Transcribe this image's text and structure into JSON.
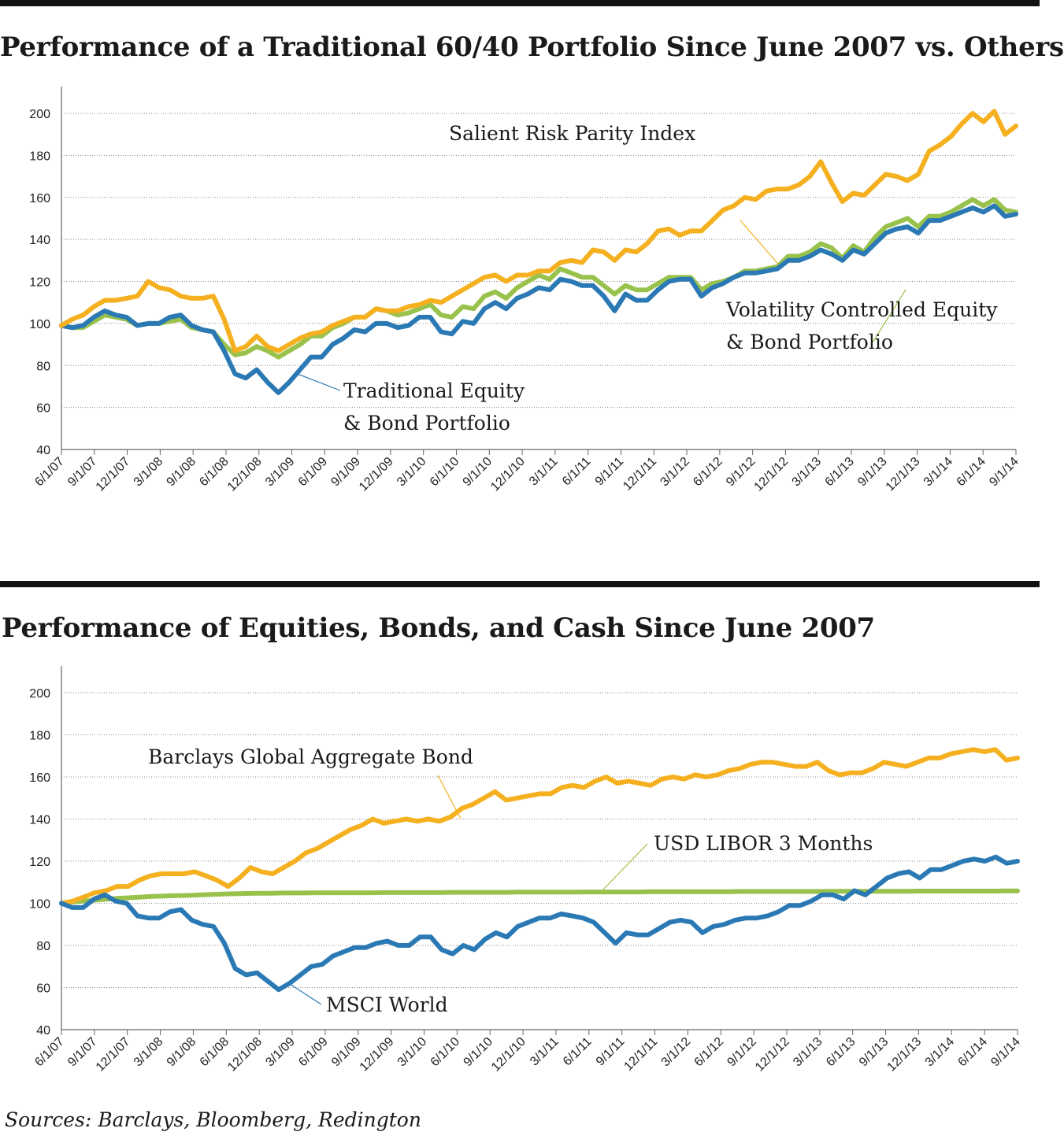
{
  "source_note": "Sources: Barclays, Bloomberg, Redington",
  "chart_data": [
    {
      "type": "line",
      "title": "Performance of a Traditional 60/40 Portfolio Since June 2007 vs. Others",
      "xlabel": "",
      "ylabel": "",
      "ylim": [
        40,
        210
      ],
      "yticks": [
        40,
        60,
        80,
        100,
        120,
        140,
        160,
        180,
        200
      ],
      "grid": true,
      "x_tick_labels": [
        "6/1/07",
        "9/1/07",
        "12/1/07",
        "3/1/08",
        "9/1/08",
        "6/1/08",
        "12/1/08",
        "3/1/09",
        "6/1/09",
        "9/1/09",
        "12/1/09",
        "3/1/10",
        "6/1/10",
        "9/1/10",
        "12/1/10",
        "3/1/11",
        "6/1/11",
        "9/1/11",
        "12/1/11",
        "3/1/12",
        "6/1/12",
        "9/1/12",
        "12/1/12",
        "3/1/13",
        "6/1/13",
        "9/1/13",
        "12/1/13",
        "3/1/14",
        "6/1/14",
        "9/1/14"
      ],
      "series": [
        {
          "name": "Traditional Equity & Bond Portfolio",
          "color": "#2b79b4",
          "values": [
            99,
            98,
            99,
            103,
            106,
            104,
            103,
            99,
            100,
            100,
            103,
            104,
            99,
            97,
            96,
            87,
            76,
            74,
            78,
            72,
            67,
            72,
            78,
            84,
            84,
            90,
            93,
            97,
            96,
            100,
            100,
            98,
            99,
            103,
            103,
            96,
            95,
            101,
            100,
            107,
            110,
            107,
            112,
            114,
            117,
            116,
            121,
            120,
            118,
            118,
            113,
            106,
            114,
            111,
            111,
            116,
            120,
            121,
            121,
            113,
            117,
            119,
            122,
            124,
            124,
            125,
            126,
            130,
            130,
            132,
            135,
            133,
            130,
            135,
            133,
            138,
            143,
            145,
            146,
            143,
            149,
            149,
            151,
            153,
            155,
            153,
            156,
            151,
            152
          ]
        },
        {
          "name": "Volatility Controlled Equity & Bond Portfolio",
          "color": "#99c24d",
          "values": [
            99,
            98,
            98,
            101,
            104,
            103,
            102,
            99,
            100,
            100,
            101,
            102,
            98,
            97,
            96,
            90,
            85,
            86,
            89,
            87,
            84,
            87,
            90,
            94,
            94,
            98,
            100,
            103,
            103,
            107,
            106,
            104,
            105,
            107,
            109,
            104,
            103,
            108,
            107,
            113,
            115,
            112,
            117,
            120,
            123,
            121,
            126,
            124,
            122,
            122,
            118,
            114,
            118,
            116,
            116,
            119,
            122,
            122,
            122,
            116,
            119,
            120,
            122,
            125,
            125,
            126,
            127,
            132,
            132,
            134,
            138,
            136,
            131,
            137,
            134,
            141,
            146,
            148,
            150,
            146,
            151,
            151,
            153,
            156,
            159,
            156,
            159,
            154,
            153
          ]
        },
        {
          "name": "Salient Risk Parity Index",
          "color": "#f5b01f",
          "values": [
            99,
            102,
            104,
            108,
            111,
            111,
            112,
            113,
            120,
            117,
            116,
            113,
            112,
            112,
            113,
            102,
            87,
            89,
            94,
            89,
            87,
            90,
            93,
            95,
            96,
            99,
            101,
            103,
            103,
            107,
            106,
            106,
            108,
            109,
            111,
            110,
            113,
            116,
            119,
            122,
            123,
            120,
            123,
            123,
            125,
            125,
            129,
            130,
            129,
            135,
            134,
            130,
            135,
            134,
            138,
            144,
            145,
            142,
            144,
            144,
            149,
            154,
            156,
            160,
            159,
            163,
            164,
            164,
            166,
            170,
            177,
            167,
            158,
            162,
            161,
            166,
            171,
            170,
            168,
            171,
            182,
            185,
            189,
            195,
            200,
            196,
            201,
            190,
            194
          ]
        }
      ],
      "annotations": [
        {
          "lines": [
            "Salient Risk Parity Index"
          ]
        },
        {
          "lines": [
            "Traditional Equity",
            "& Bond Portfolio"
          ]
        },
        {
          "lines": [
            "Volatility Controlled Equity",
            "& Bond Portfolio"
          ]
        }
      ]
    },
    {
      "type": "line",
      "title": "Performance of Equities, Bonds, and Cash Since June 2007",
      "xlabel": "",
      "ylabel": "",
      "ylim": [
        40,
        210
      ],
      "yticks": [
        40,
        60,
        80,
        100,
        120,
        140,
        160,
        180,
        200
      ],
      "grid": true,
      "x_tick_labels": [
        "6/1/07",
        "9/1/07",
        "12/1/07",
        "3/1/08",
        "9/1/08",
        "6/1/08",
        "12/1/08",
        "3/1/09",
        "6/1/09",
        "9/1/09",
        "12/1/09",
        "3/1/10",
        "6/1/10",
        "9/1/10",
        "12/1/10",
        "3/1/11",
        "6/1/11",
        "9/1/11",
        "12/1/11",
        "3/1/12",
        "6/1/12",
        "9/1/12",
        "12/1/12",
        "3/1/13",
        "6/1/13",
        "9/1/13",
        "12/1/13",
        "3/1/14",
        "6/1/14",
        "9/1/14"
      ],
      "series": [
        {
          "name": "Barclays Global Aggregate Bond",
          "color": "#f5b01f",
          "values": [
            100,
            101,
            103,
            105,
            106,
            108,
            108,
            111,
            113,
            114,
            114,
            114,
            115,
            113,
            111,
            108,
            112,
            117,
            115,
            114,
            117,
            120,
            124,
            126,
            129,
            132,
            135,
            137,
            140,
            138,
            139,
            140,
            139,
            140,
            139,
            141,
            145,
            147,
            150,
            153,
            149,
            150,
            151,
            152,
            152,
            155,
            156,
            155,
            158,
            160,
            157,
            158,
            157,
            156,
            159,
            160,
            159,
            161,
            160,
            161,
            163,
            164,
            166,
            167,
            167,
            166,
            165,
            165,
            167,
            163,
            161,
            162,
            162,
            164,
            167,
            166,
            165,
            167,
            169,
            169,
            171,
            172,
            173,
            172,
            173,
            168,
            169
          ]
        },
        {
          "name": "USD LIBOR 3 Months",
          "color": "#99c24d",
          "values": [
            100,
            100.6,
            101.1,
            101.5,
            101.9,
            102.3,
            102.6,
            102.9,
            103.2,
            103.4,
            103.6,
            103.7,
            103.9,
            104.1,
            104.3,
            104.5,
            104.6,
            104.7,
            104.8,
            104.8,
            104.9,
            104.9,
            104.9,
            105,
            105,
            105,
            105,
            105,
            105,
            105.1,
            105.1,
            105.1,
            105.1,
            105.1,
            105.1,
            105.2,
            105.2,
            105.2,
            105.2,
            105.2,
            105.2,
            105.3,
            105.3,
            105.3,
            105.3,
            105.3,
            105.3,
            105.4,
            105.4,
            105.4,
            105.4,
            105.4,
            105.4,
            105.5,
            105.5,
            105.5,
            105.5,
            105.5,
            105.5,
            105.5,
            105.5,
            105.6,
            105.6,
            105.6,
            105.6,
            105.6,
            105.6,
            105.6,
            105.6,
            105.7,
            105.7,
            105.7,
            105.7,
            105.7,
            105.7,
            105.7,
            105.7,
            105.8,
            105.8,
            105.8,
            105.8,
            105.8,
            105.8,
            105.8,
            105.8,
            105.9,
            105.9
          ]
        },
        {
          "name": "MSCI World",
          "color": "#2b79b4",
          "values": [
            100,
            98,
            98,
            102,
            104,
            101,
            100,
            94,
            93,
            93,
            96,
            97,
            92,
            90,
            89,
            81,
            69,
            66,
            67,
            63,
            59,
            62,
            66,
            70,
            71,
            75,
            77,
            79,
            79,
            81,
            82,
            80,
            80,
            84,
            84,
            78,
            76,
            80,
            78,
            83,
            86,
            84,
            89,
            91,
            93,
            93,
            95,
            94,
            93,
            91,
            86,
            81,
            86,
            85,
            85,
            88,
            91,
            92,
            91,
            86,
            89,
            90,
            92,
            93,
            93,
            94,
            96,
            99,
            99,
            101,
            104,
            104,
            102,
            106,
            104,
            108,
            112,
            114,
            115,
            112,
            116,
            116,
            118,
            120,
            121,
            120,
            122,
            119,
            120
          ]
        }
      ],
      "annotations": [
        {
          "lines": [
            "Barclays Global Aggregate Bond"
          ]
        },
        {
          "lines": [
            "USD LIBOR 3 Months"
          ]
        },
        {
          "lines": [
            "MSCI World"
          ]
        }
      ]
    }
  ]
}
